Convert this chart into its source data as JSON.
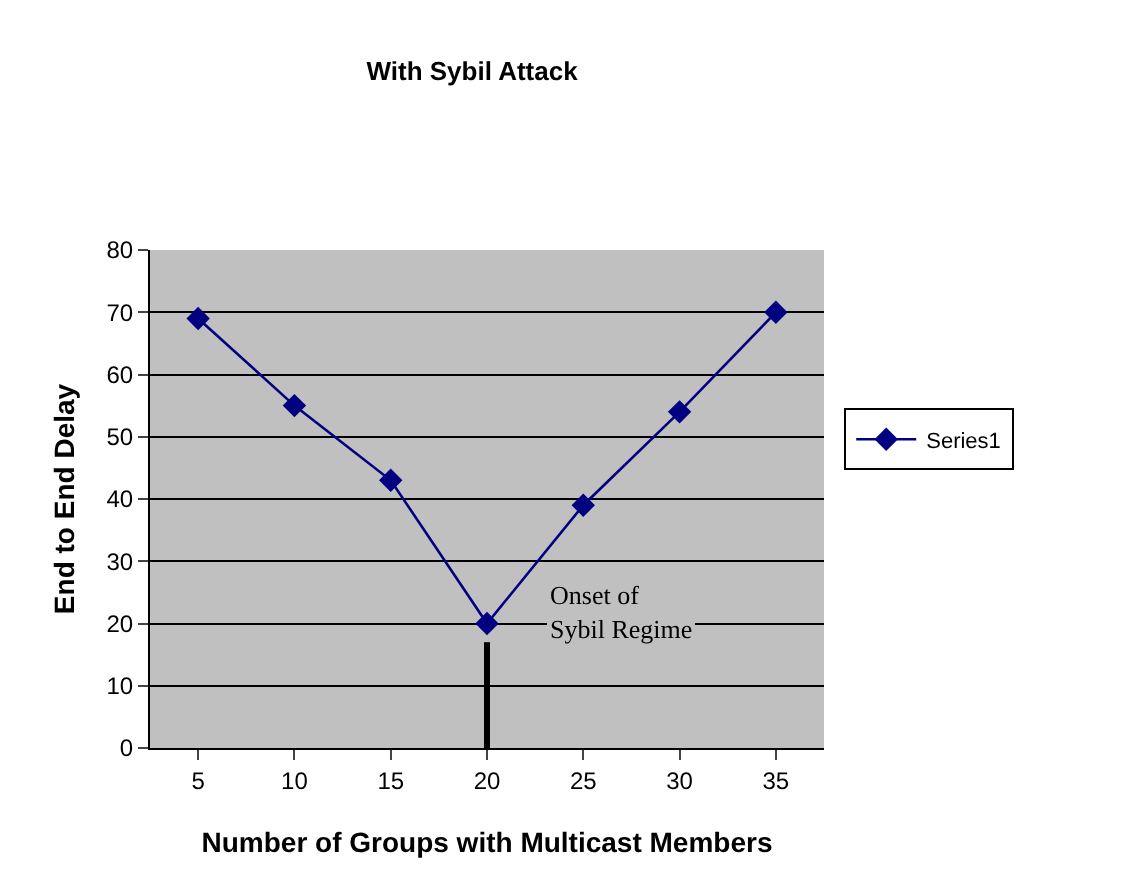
{
  "chart_data": {
    "type": "line",
    "title": "With Sybil Attack",
    "xlabel": "Number of Groups with Multicast Members",
    "ylabel": "End to End Delay",
    "categories": [
      "5",
      "10",
      "15",
      "20",
      "25",
      "30",
      "35"
    ],
    "series": [
      {
        "name": "Series1",
        "color": "#000080",
        "values": [
          69,
          55,
          43,
          20,
          39,
          54,
          70
        ]
      }
    ],
    "ylim": [
      0,
      80
    ],
    "yticks": [
      0,
      10,
      20,
      30,
      40,
      50,
      60,
      70,
      80
    ],
    "grid": "y",
    "legend": "right",
    "marker": "diamond",
    "line_style": "solid",
    "ref_lines": [
      {
        "axis": "x",
        "value": "20",
        "color": "#000000"
      }
    ],
    "annotations": [
      "Onset of\nSybil Regime"
    ]
  }
}
